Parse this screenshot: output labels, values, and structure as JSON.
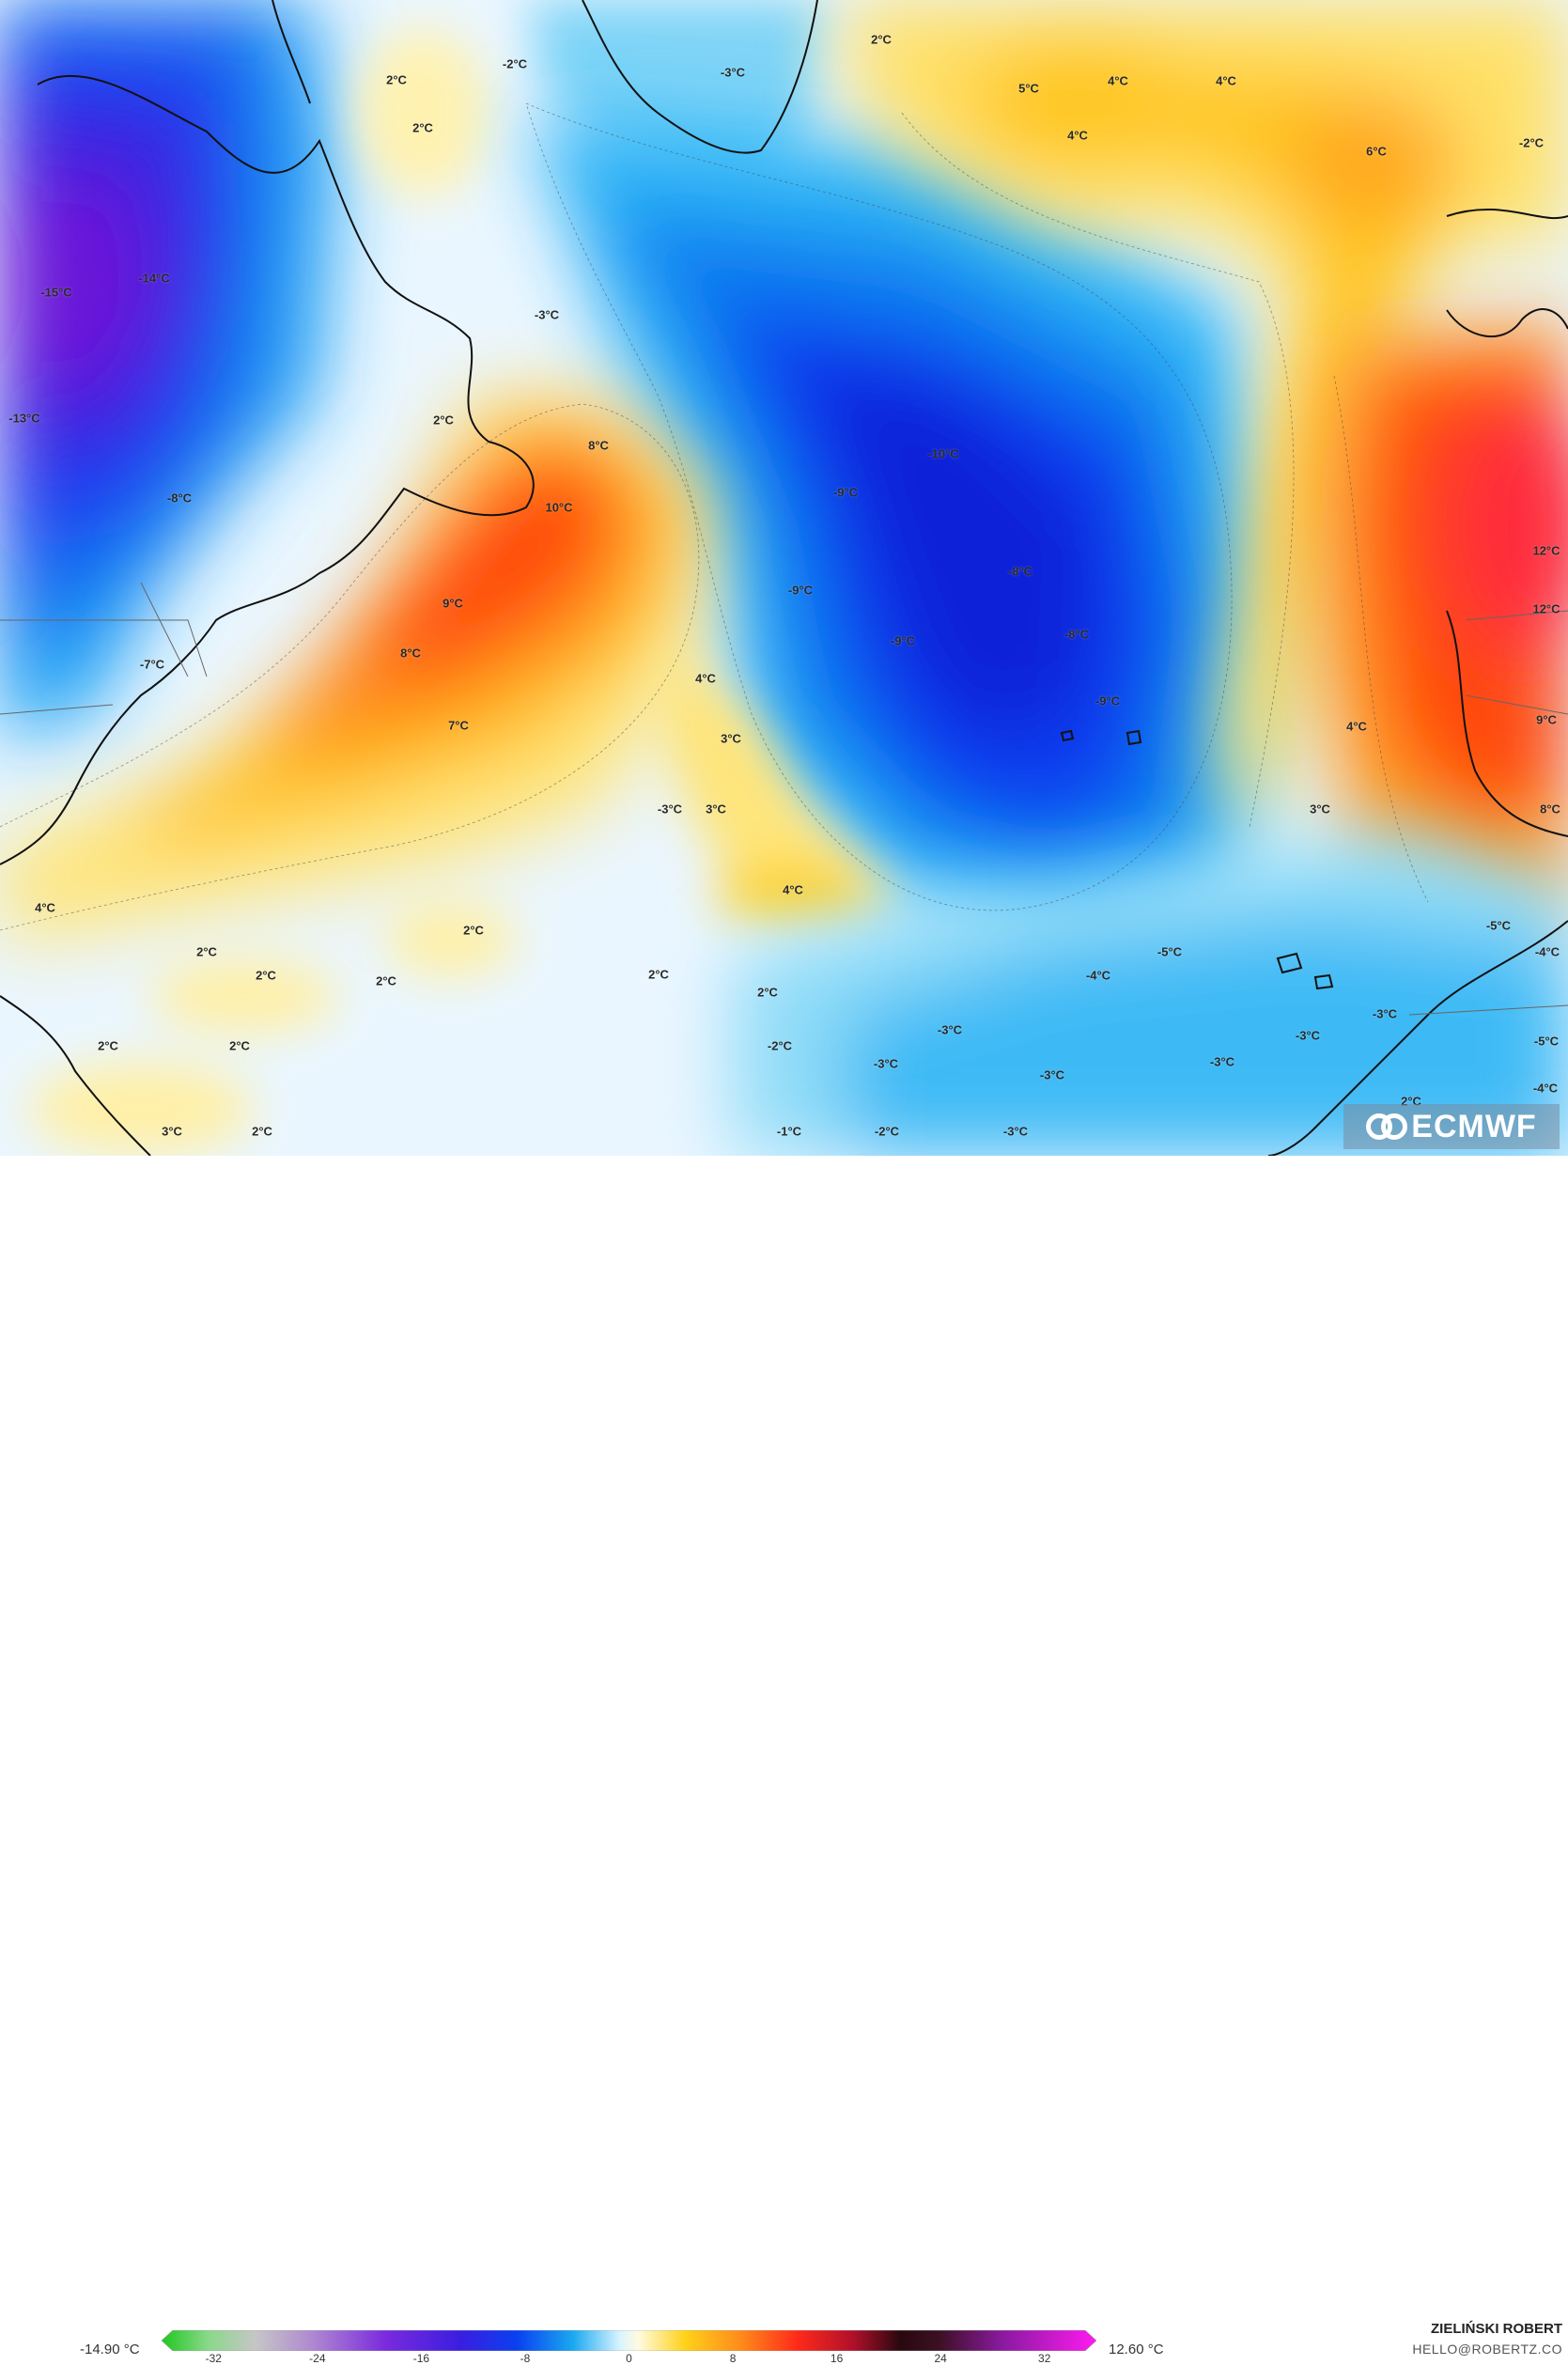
{
  "map": {
    "labels": [
      {
        "t": "2°C"
      },
      {
        "t": "2°C"
      },
      {
        "t": "-2°C"
      },
      {
        "t": "-3°C"
      },
      {
        "t": "2°C"
      },
      {
        "t": "5°C"
      },
      {
        "t": "4°C"
      },
      {
        "t": "4°C"
      },
      {
        "t": "4°C"
      },
      {
        "t": "6°C"
      },
      {
        "t": "-2°C"
      },
      {
        "t": "-15°C"
      },
      {
        "t": "-14°C"
      },
      {
        "t": "-3°C"
      },
      {
        "t": "-13°C"
      },
      {
        "t": "-8°C"
      },
      {
        "t": "2°C"
      },
      {
        "t": "8°C"
      },
      {
        "t": "10°C"
      },
      {
        "t": "-10°C"
      },
      {
        "t": "-9°C"
      },
      {
        "t": "-8°C"
      },
      {
        "t": "-9°C"
      },
      {
        "t": "9°C"
      },
      {
        "t": "8°C"
      },
      {
        "t": "-9°C"
      },
      {
        "t": "-8°C"
      },
      {
        "t": "-7°C"
      },
      {
        "t": "7°C"
      },
      {
        "t": "4°C"
      },
      {
        "t": "3°C"
      },
      {
        "t": "-9°C"
      },
      {
        "t": "-3°C"
      },
      {
        "t": "3°C"
      },
      {
        "t": "4°C"
      },
      {
        "t": "12°C"
      },
      {
        "t": "12°C"
      },
      {
        "t": "4°C"
      },
      {
        "t": "9°C"
      },
      {
        "t": "3°C"
      },
      {
        "t": "8°C"
      },
      {
        "t": "4°C"
      },
      {
        "t": "2°C"
      },
      {
        "t": "2°C"
      },
      {
        "t": "2°C"
      },
      {
        "t": "2°C"
      },
      {
        "t": "2°C"
      },
      {
        "t": "2°C"
      },
      {
        "t": "2°C"
      },
      {
        "t": "2°C"
      },
      {
        "t": "3°C"
      },
      {
        "t": "2°C"
      },
      {
        "t": "-2°C"
      },
      {
        "t": "-1°C"
      },
      {
        "t": "-2°C"
      },
      {
        "t": "-3°C"
      },
      {
        "t": "-3°C"
      },
      {
        "t": "-3°C"
      },
      {
        "t": "-3°C"
      },
      {
        "t": "-4°C"
      },
      {
        "t": "-5°C"
      },
      {
        "t": "-3°C"
      },
      {
        "t": "-3°C"
      },
      {
        "t": "-3°C"
      },
      {
        "t": "-5°C"
      },
      {
        "t": "-4°C"
      },
      {
        "t": "-5°C"
      },
      {
        "t": "-4°C"
      },
      {
        "t": "2°C"
      }
    ],
    "logo_text": "ECMWF"
  },
  "colorbar": {
    "min_value": "-14.90 °C",
    "max_value": "12.60 °C",
    "ticks": [
      "-32",
      "-24",
      "-16",
      "-8",
      "0",
      "8",
      "16",
      "24",
      "32"
    ],
    "colors": {
      "cold_deep": "#4a10c8",
      "cold": "#0a2fe0",
      "cool": "#19a8f0",
      "neutral": "#ffffff",
      "warm": "#ffd21a",
      "hot": "#ff4a10"
    }
  },
  "credit": {
    "author": "ZIELIŃSKI ROBERT",
    "email": "HELLO@ROBERTZ.CO"
  }
}
